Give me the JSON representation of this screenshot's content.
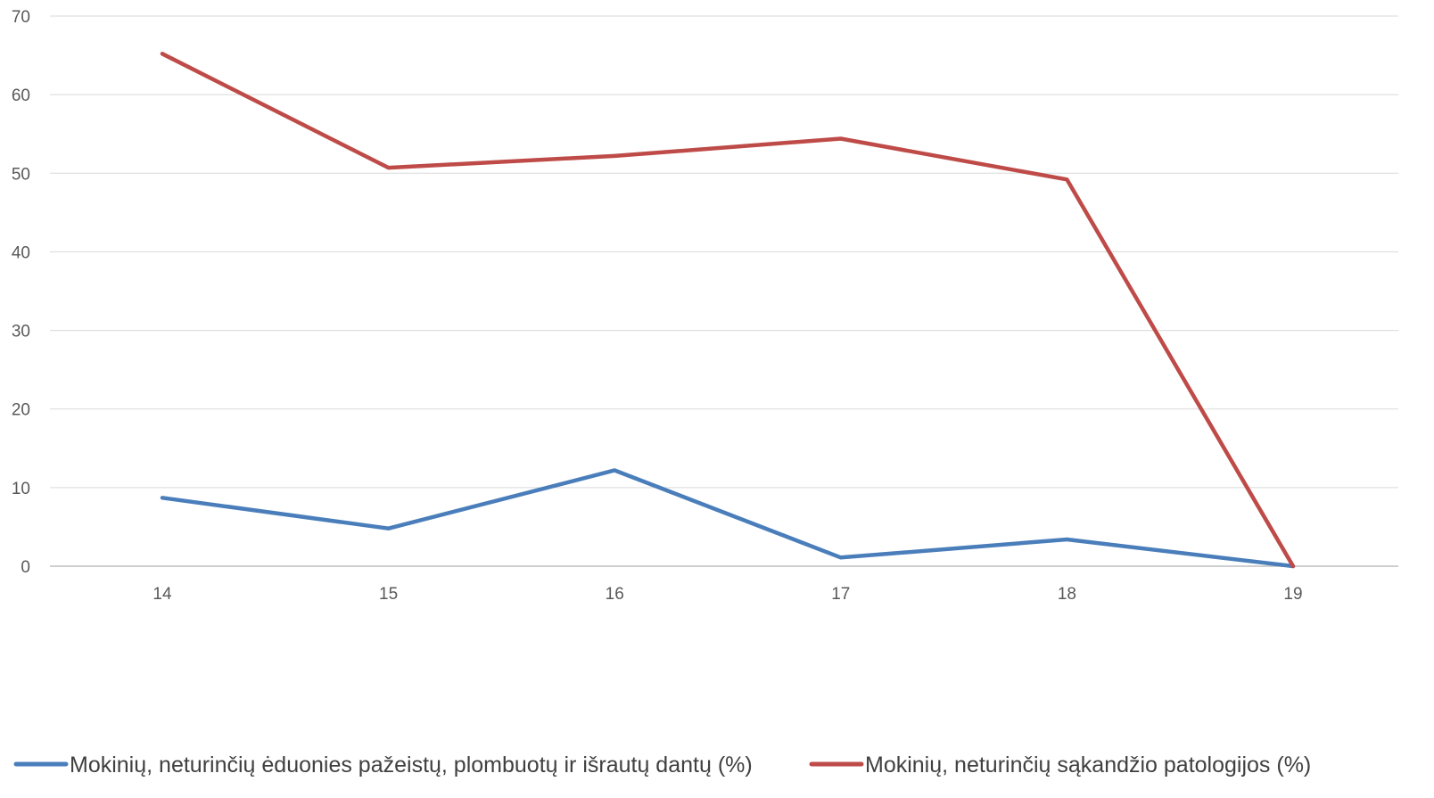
{
  "chart_data": {
    "type": "line",
    "title": "",
    "xlabel": "",
    "ylabel": "",
    "categories": [
      "14",
      "15",
      "16",
      "17",
      "18",
      "19"
    ],
    "ylim": [
      0,
      70
    ],
    "yticks": [
      "0",
      "10",
      "20",
      "30",
      "40",
      "50",
      "60",
      "70"
    ],
    "grid": true,
    "legend_position": "bottom",
    "series": [
      {
        "name": "Mokinių, neturinčių ėduonies pažeistų, plombuotų ir išrautų dantų (%)",
        "color": "#4a7ebb",
        "values": [
          8.7,
          4.8,
          12.2,
          1.1,
          3.4,
          0
        ]
      },
      {
        "name": "Mokinių, neturinčių sąkandžio patologijos  (%)",
        "color": "#be4b48",
        "values": [
          65.2,
          50.7,
          52.2,
          54.4,
          49.2,
          0
        ]
      }
    ]
  }
}
